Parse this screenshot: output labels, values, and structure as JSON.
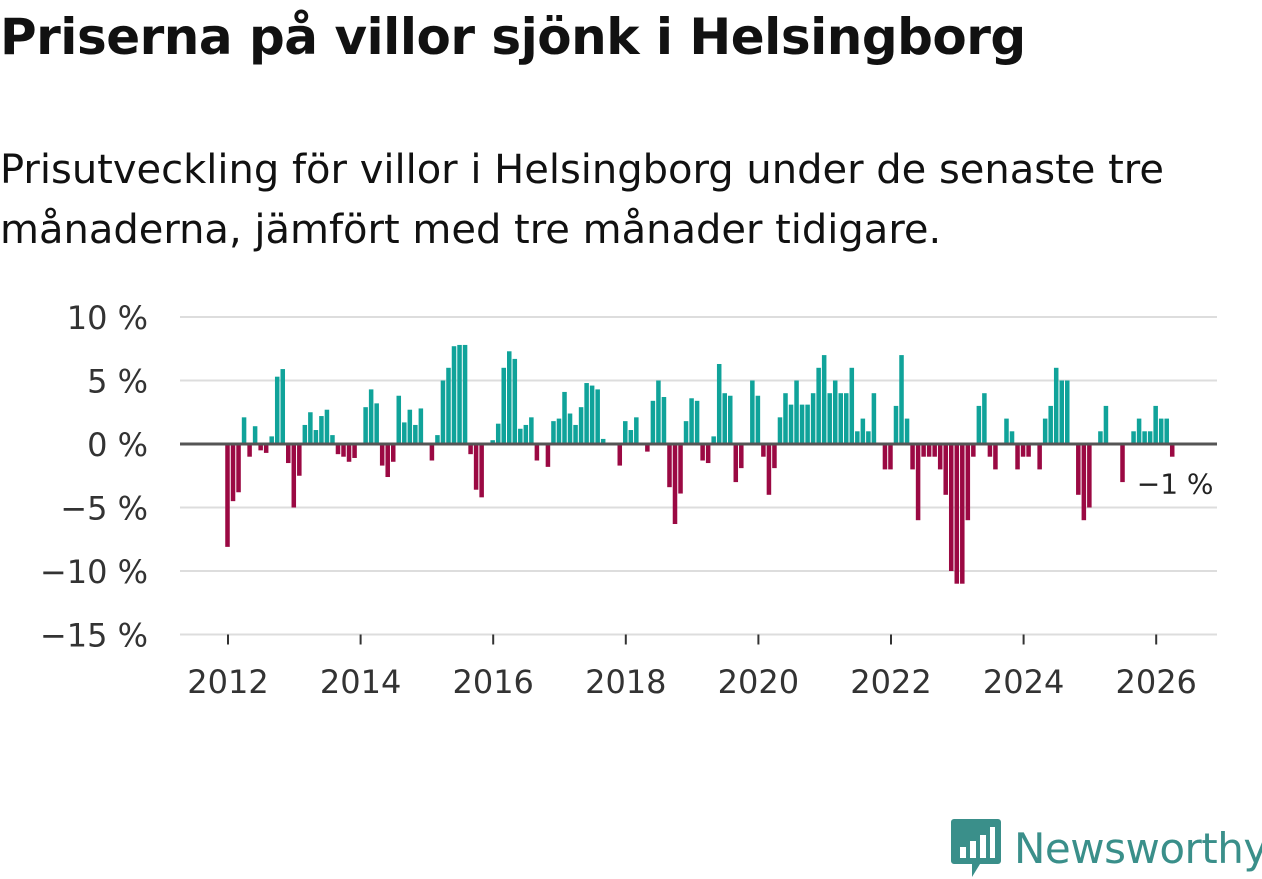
{
  "title": "Priserna på villor sjönk i Helsingborg",
  "subtitle": "Prisutveckling för villor i Helsingborg under de senaste tre månaderna, jämfört med tre månader tidigare.",
  "brand": {
    "name": "Newsworthy",
    "icon": "newsworthy-logo-icon",
    "color": "#3a8f8a"
  },
  "colors": {
    "positive": "#10a39a",
    "negative": "#9b0943",
    "zero_line": "#555555",
    "grid": "#dddddd"
  },
  "chart_data": {
    "type": "bar",
    "title": "",
    "xlabel": "",
    "ylabel": "",
    "ylim": [
      -15,
      10
    ],
    "y_ticks": [
      10,
      5,
      0,
      -5,
      -10,
      -15
    ],
    "y_tick_labels": [
      "10 %",
      "5 %",
      "0 %",
      "−5 %",
      "−10 %",
      "−15 %"
    ],
    "x_ticks": [
      2012,
      2014,
      2016,
      2018,
      2020,
      2022,
      2024,
      2026
    ],
    "x_tick_labels": [
      "2012",
      "2014",
      "2016",
      "2018",
      "2020",
      "2022",
      "2024",
      "2026"
    ],
    "x_start": 2012.0,
    "x_step": 0.08333,
    "grid": true,
    "last_value_label": "−1 %",
    "values": [
      -8.1,
      -4.5,
      -3.8,
      2.1,
      -1.0,
      1.4,
      -0.5,
      -0.7,
      0.6,
      5.3,
      5.9,
      -1.5,
      -5.0,
      -2.5,
      1.5,
      2.5,
      1.1,
      2.2,
      2.7,
      0.7,
      -0.8,
      -1.0,
      -1.4,
      -1.1,
      0.0,
      2.9,
      4.3,
      3.2,
      -1.7,
      -2.6,
      -1.4,
      3.8,
      1.7,
      2.7,
      1.5,
      2.8,
      0.0,
      -1.3,
      0.7,
      5.0,
      6.0,
      7.7,
      7.8,
      7.8,
      -0.8,
      -3.6,
      -4.2,
      0.0,
      0.3,
      1.6,
      6.0,
      7.3,
      6.7,
      1.2,
      1.5,
      2.1,
      -1.3,
      0.0,
      -1.8,
      1.8,
      2.0,
      4.1,
      2.4,
      1.5,
      2.9,
      4.8,
      4.6,
      4.3,
      0.4,
      0.0,
      0.0,
      -1.7,
      1.8,
      1.1,
      2.1,
      0.0,
      -0.6,
      3.4,
      5.0,
      3.7,
      -3.4,
      -6.3,
      -3.9,
      1.8,
      3.6,
      3.4,
      -1.3,
      -1.5,
      0.6,
      6.3,
      4.0,
      3.8,
      -3.0,
      -1.9,
      0.0,
      5.0,
      3.8,
      -1.0,
      -4.0,
      -1.9,
      2.1,
      4.0,
      3.1,
      5.0,
      3.1,
      3.1,
      4.0,
      6.0,
      7.0,
      4.0,
      5.0,
      4.0,
      4.0,
      6.0,
      1.0,
      2.0,
      1.0,
      4.0,
      0.0,
      -2.0,
      -2.0,
      3.0,
      7.0,
      2.0,
      -2.0,
      -6.0,
      -1.0,
      -1.0,
      -1.0,
      -2.0,
      -4.0,
      -10.0,
      -11.0,
      -11.0,
      -6.0,
      -1.0,
      3.0,
      4.0,
      -1.0,
      -2.0,
      0.0,
      2.0,
      1.0,
      -2.0,
      -1.0,
      -1.0,
      0.0,
      -2.0,
      2.0,
      3.0,
      6.0,
      5.0,
      5.0,
      0.0,
      -4.0,
      -6.0,
      -5.0,
      0.0,
      1.0,
      3.0,
      0.0,
      0.0,
      -3.0,
      0.0,
      1.0,
      2.0,
      1.0,
      1.0,
      3.0,
      2.0,
      2.0,
      -1.0
    ]
  }
}
